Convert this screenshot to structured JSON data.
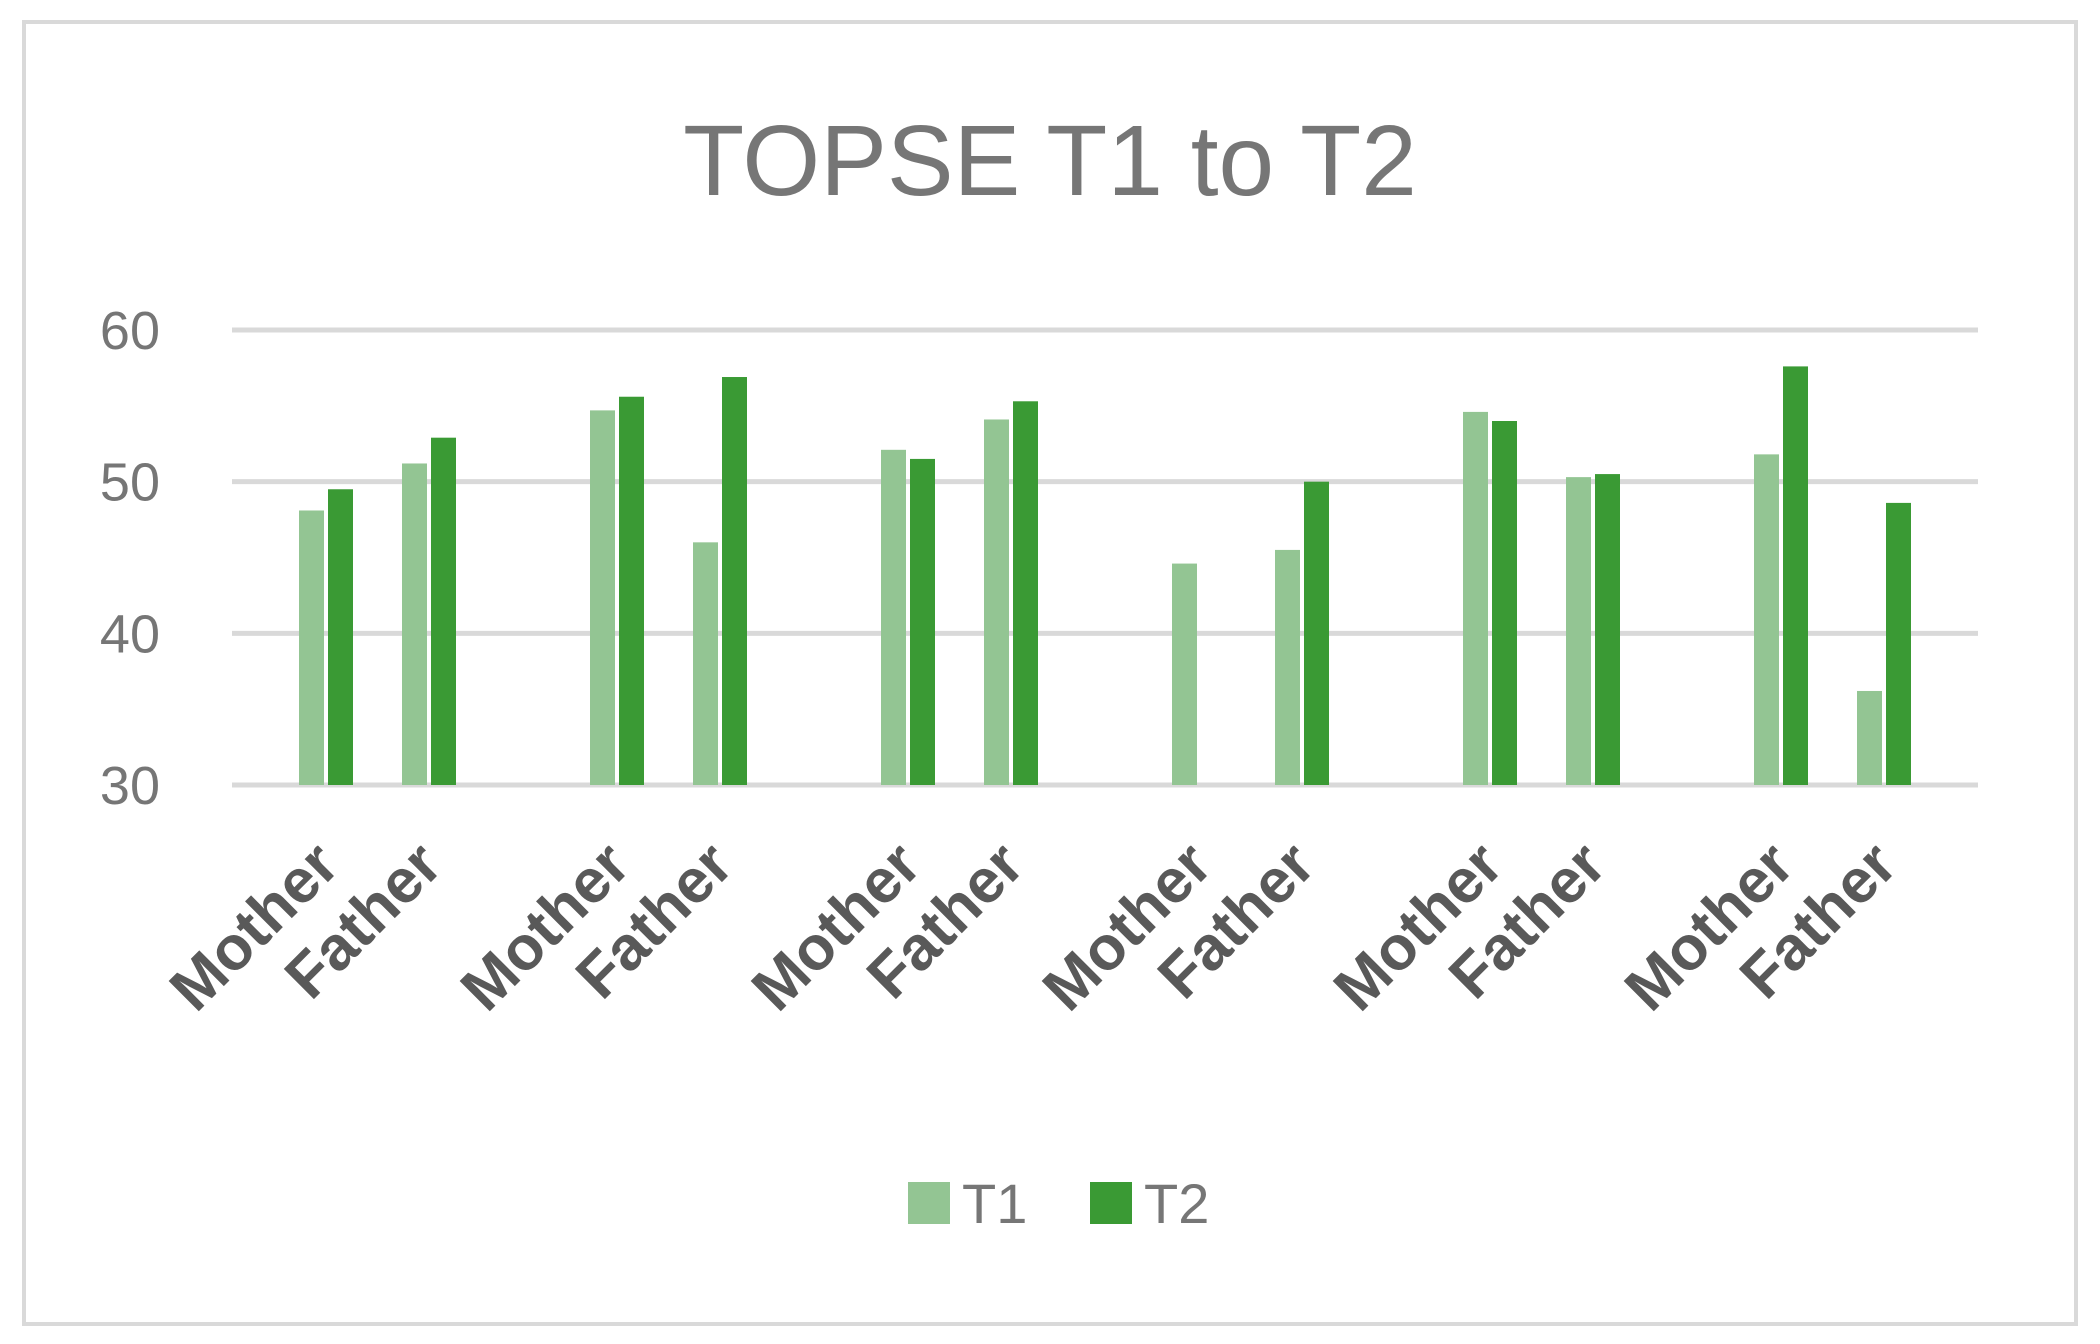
{
  "chart_data": {
    "type": "bar",
    "title": "TOPSE T1 to T2",
    "xlabel": "",
    "ylabel": "",
    "ylim": [
      30,
      60
    ],
    "yticks": [
      30,
      40,
      50,
      60
    ],
    "grid": true,
    "legend_position": "bottom",
    "categories": [
      "Mother",
      "Father",
      "Mother",
      "Father",
      "Mother",
      "Father",
      "Mother",
      "Father",
      "Mother",
      "Father",
      "Mother",
      "Father"
    ],
    "group_size": 2,
    "series": [
      {
        "name": "T1",
        "color": "#93c593",
        "values": [
          48.1,
          51.2,
          54.7,
          46.0,
          52.1,
          54.1,
          44.6,
          45.5,
          54.6,
          50.3,
          51.8,
          36.2
        ]
      },
      {
        "name": "T2",
        "color": "#3a9a34",
        "values": [
          49.5,
          52.9,
          55.6,
          56.9,
          51.5,
          55.3,
          null,
          50.0,
          54.0,
          50.5,
          57.6,
          48.6
        ]
      }
    ]
  }
}
